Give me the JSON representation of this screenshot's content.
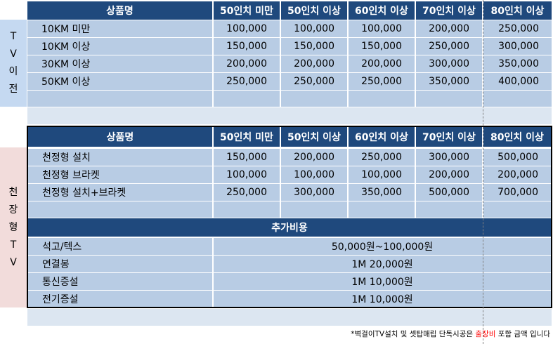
{
  "tv_transfer": {
    "side_label": [
      "T",
      "V",
      "이",
      "전"
    ],
    "headers": [
      "상품명",
      "50인치 미만",
      "50인치 이상",
      "60인치 이상",
      "70인치 이상",
      "80인치 이상"
    ],
    "rows": [
      {
        "name": "10KM 미만",
        "values": [
          "100,000",
          "100,000",
          "100,000",
          "200,000",
          "250,000"
        ]
      },
      {
        "name": "10KM 이상",
        "values": [
          "150,000",
          "150,000",
          "150,000",
          "250,000",
          "300,000"
        ]
      },
      {
        "name": "30KM 이상",
        "values": [
          "200,000",
          "200,000",
          "200,000",
          "300,000",
          "350,000"
        ]
      },
      {
        "name": "50KM 이상",
        "values": [
          "250,000",
          "250,000",
          "250,000",
          "350,000",
          "400,000"
        ]
      }
    ]
  },
  "ceiling_tv": {
    "side_label": [
      "천",
      "장",
      "형",
      "T",
      "V"
    ],
    "headers": [
      "상품명",
      "50인치 미만",
      "50인치 이상",
      "60인치 이상",
      "70인치 이상",
      "80인치 이상"
    ],
    "rows": [
      {
        "name": "천정형 설치",
        "values": [
          "150,000",
          "200,000",
          "250,000",
          "300,000",
          "500,000"
        ]
      },
      {
        "name": "천정형 브라켓",
        "values": [
          "100,000",
          "100,000",
          "100,000",
          "200,000",
          "200,000"
        ]
      },
      {
        "name": "천정형 설치+브라켓",
        "values": [
          "250,000",
          "300,000",
          "350,000",
          "500,000",
          "700,000"
        ]
      }
    ],
    "extra_title": "추가비용",
    "extra_rows": [
      {
        "name": "석고/텍스",
        "value": "50,000원~100,000원"
      },
      {
        "name": "연결봉",
        "value": "1M 20,000원"
      },
      {
        "name": "통신증설",
        "value": "1M 10,000원"
      },
      {
        "name": "전기증설",
        "value": "1M 10,000원"
      }
    ]
  },
  "footnote": {
    "before": "*벽걸이TV설치 및 셋탑매립 단독시공은 ",
    "highlight": "출장비",
    "after": " 포함 금액 입니다"
  },
  "colors": {
    "header_bg": "#1f497d",
    "cell_bg": "#b8cce4",
    "side_tv_bg": "#c5d9f1",
    "side_ceiling_bg": "#f2dcdb",
    "highlight": "#ff0000"
  }
}
